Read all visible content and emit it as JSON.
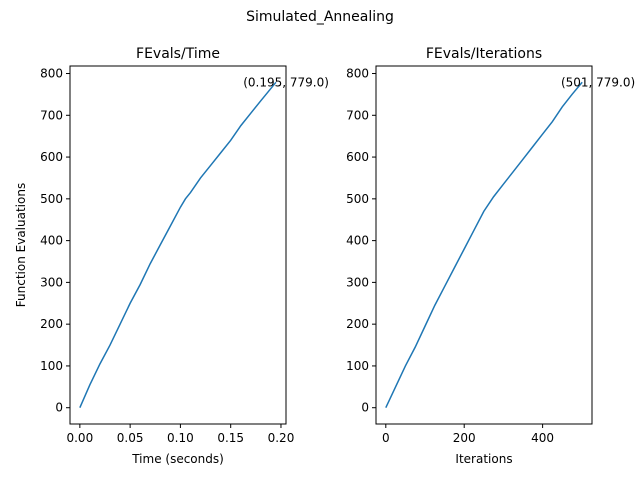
{
  "figure": {
    "suptitle": "Simulated_Annealing"
  },
  "colors": {
    "line": "#1f77b4",
    "axis": "#000000",
    "background": "#ffffff"
  },
  "chart_data": [
    {
      "type": "line",
      "title": "FEvals/Time",
      "xlabel": "Time (seconds)",
      "ylabel": "Function Evaluations",
      "xlim": [
        -0.0098,
        0.205
      ],
      "ylim": [
        -39,
        818
      ],
      "xticks": [
        0.0,
        0.05,
        0.1,
        0.15,
        0.2
      ],
      "xtick_labels": [
        "0.00",
        "0.05",
        "0.10",
        "0.15",
        "0.20"
      ],
      "yticks": [
        0,
        100,
        200,
        300,
        400,
        500,
        600,
        700,
        800
      ],
      "ytick_labels": [
        "0",
        "100",
        "200",
        "300",
        "400",
        "500",
        "600",
        "700",
        "800"
      ],
      "grid": false,
      "x": [
        0.0,
        0.01,
        0.02,
        0.03,
        0.04,
        0.05,
        0.06,
        0.07,
        0.08,
        0.09,
        0.1,
        0.105,
        0.11,
        0.12,
        0.13,
        0.14,
        0.15,
        0.16,
        0.17,
        0.18,
        0.195
      ],
      "y": [
        0,
        55,
        105,
        150,
        200,
        250,
        295,
        345,
        390,
        435,
        480,
        500,
        515,
        550,
        580,
        610,
        640,
        675,
        705,
        735,
        779
      ],
      "annotation": {
        "text": "(0.195, 779.0)",
        "x": 0.195,
        "y": 779.0
      }
    },
    {
      "type": "line",
      "title": "FEvals/Iterations",
      "xlabel": "Iterations",
      "ylabel": "",
      "xlim": [
        -25,
        526
      ],
      "ylim": [
        -39,
        818
      ],
      "xticks": [
        0,
        200,
        400
      ],
      "xtick_labels": [
        "0",
        "200",
        "400"
      ],
      "yticks": [
        0,
        100,
        200,
        300,
        400,
        500,
        600,
        700,
        800
      ],
      "ytick_labels": [
        "0",
        "100",
        "200",
        "300",
        "400",
        "500",
        "600",
        "700",
        "800"
      ],
      "grid": false,
      "x": [
        0,
        25,
        50,
        75,
        100,
        125,
        150,
        175,
        200,
        225,
        250,
        275,
        300,
        325,
        350,
        375,
        400,
        425,
        450,
        475,
        501
      ],
      "y": [
        0,
        50,
        100,
        145,
        195,
        245,
        290,
        335,
        380,
        425,
        470,
        505,
        535,
        565,
        595,
        625,
        655,
        685,
        720,
        750,
        779
      ],
      "annotation": {
        "text": "(501, 779.0)",
        "x": 501,
        "y": 779.0
      }
    }
  ]
}
